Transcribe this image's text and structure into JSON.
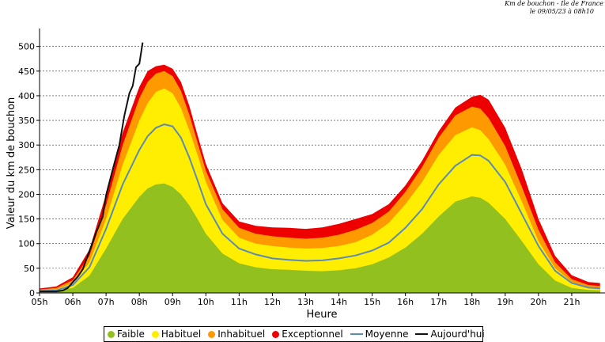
{
  "header": {
    "line1": "Km de bouchon - Ile de France",
    "line2": "le 09/05/23 à 08h10"
  },
  "colors": {
    "faible": "#92c01e",
    "habituel": "#ffee00",
    "inhabituel": "#ff9900",
    "exceptionnel": "#ee0000",
    "moyenne": "#5b8bb8",
    "aujourdhui": "#111111"
  },
  "chart_data": {
    "type": "area",
    "title": "",
    "xlabel": "Heure",
    "ylabel": "Valeur du  km de bouchon",
    "xlim": [
      5,
      22
    ],
    "ylim": [
      0,
      530
    ],
    "x_ticks": [
      "05h",
      "06h",
      "07h",
      "08h",
      "09h",
      "10h",
      "11h",
      "12h",
      "13h",
      "14h",
      "15h",
      "16h",
      "17h",
      "18h",
      "19h",
      "20h",
      "21h"
    ],
    "y_ticks": [
      0,
      50,
      100,
      150,
      200,
      250,
      300,
      350,
      400,
      450,
      500
    ],
    "grid": "horizontal dashed",
    "legend_position": "bottom",
    "x": [
      5,
      5.5,
      6,
      6.5,
      7,
      7.5,
      8,
      8.25,
      8.5,
      8.75,
      9,
      9.25,
      9.5,
      9.75,
      10,
      10.5,
      11,
      11.5,
      12,
      12.5,
      13,
      13.5,
      14,
      14.5,
      15,
      15.5,
      16,
      16.5,
      17,
      17.5,
      18,
      18.25,
      18.5,
      19,
      19.5,
      20,
      20.5,
      21,
      21.5,
      21.85
    ],
    "series": [
      {
        "name": "Faible",
        "values": [
          3,
          4,
          10,
          35,
          90,
          150,
          195,
          212,
          220,
          222,
          215,
          200,
          178,
          150,
          120,
          80,
          60,
          52,
          48,
          47,
          45,
          44,
          46,
          50,
          58,
          72,
          92,
          120,
          155,
          185,
          196,
          193,
          183,
          150,
          105,
          58,
          25,
          10,
          6,
          5
        ]
      },
      {
        "name": "Habituel",
        "values": [
          5,
          7,
          20,
          62,
          150,
          260,
          350,
          385,
          408,
          415,
          405,
          375,
          330,
          280,
          225,
          148,
          112,
          100,
          95,
          92,
          90,
          91,
          95,
          103,
          118,
          142,
          180,
          225,
          280,
          320,
          336,
          330,
          312,
          260,
          185,
          105,
          50,
          22,
          12,
          10
        ]
      },
      {
        "name": "Inhabituel",
        "values": [
          7,
          10,
          26,
          75,
          178,
          300,
          395,
          428,
          445,
          450,
          440,
          410,
          362,
          305,
          248,
          170,
          132,
          120,
          115,
          112,
          110,
          112,
          118,
          128,
          142,
          165,
          205,
          255,
          315,
          360,
          378,
          374,
          355,
          298,
          215,
          128,
          62,
          28,
          16,
          14
        ]
      },
      {
        "name": "Exceptionnel",
        "values": [
          9,
          13,
          32,
          88,
          200,
          325,
          418,
          450,
          460,
          463,
          455,
          428,
          380,
          320,
          262,
          182,
          145,
          136,
          133,
          132,
          130,
          133,
          140,
          150,
          160,
          180,
          218,
          268,
          328,
          376,
          398,
          402,
          392,
          335,
          250,
          150,
          75,
          36,
          22,
          20
        ]
      },
      {
        "name": "Moyenne",
        "values": [
          4,
          5,
          16,
          52,
          130,
          220,
          290,
          318,
          335,
          342,
          338,
          315,
          275,
          228,
          180,
          120,
          90,
          78,
          70,
          67,
          65,
          66,
          70,
          76,
          86,
          102,
          132,
          170,
          220,
          258,
          280,
          279,
          268,
          225,
          160,
          95,
          45,
          20,
          11,
          9
        ]
      },
      {
        "name": "Aujourd'hui",
        "x": [
          5,
          5.5,
          5.7,
          5.85,
          6,
          6.15,
          6.3,
          6.5,
          6.7,
          6.9,
          7,
          7.2,
          7.4,
          7.55,
          7.7,
          7.8,
          7.9,
          8.0,
          8.1
        ],
        "values": [
          3,
          3,
          5,
          10,
          22,
          33,
          48,
          85,
          122,
          155,
          198,
          250,
          300,
          360,
          405,
          420,
          458,
          465,
          508
        ]
      }
    ]
  },
  "legend": [
    {
      "label": "Faible",
      "kind": "dot",
      "color": "#92c01e"
    },
    {
      "label": "Habituel",
      "kind": "dot",
      "color": "#ffee00"
    },
    {
      "label": "Inhabituel",
      "kind": "dot",
      "color": "#ff9900"
    },
    {
      "label": "Exceptionnel",
      "kind": "dot",
      "color": "#ee0000"
    },
    {
      "label": "Moyenne",
      "kind": "line",
      "color": "#5b8bb8"
    },
    {
      "label": "Aujourd'hui",
      "kind": "line",
      "color": "#111111"
    }
  ]
}
